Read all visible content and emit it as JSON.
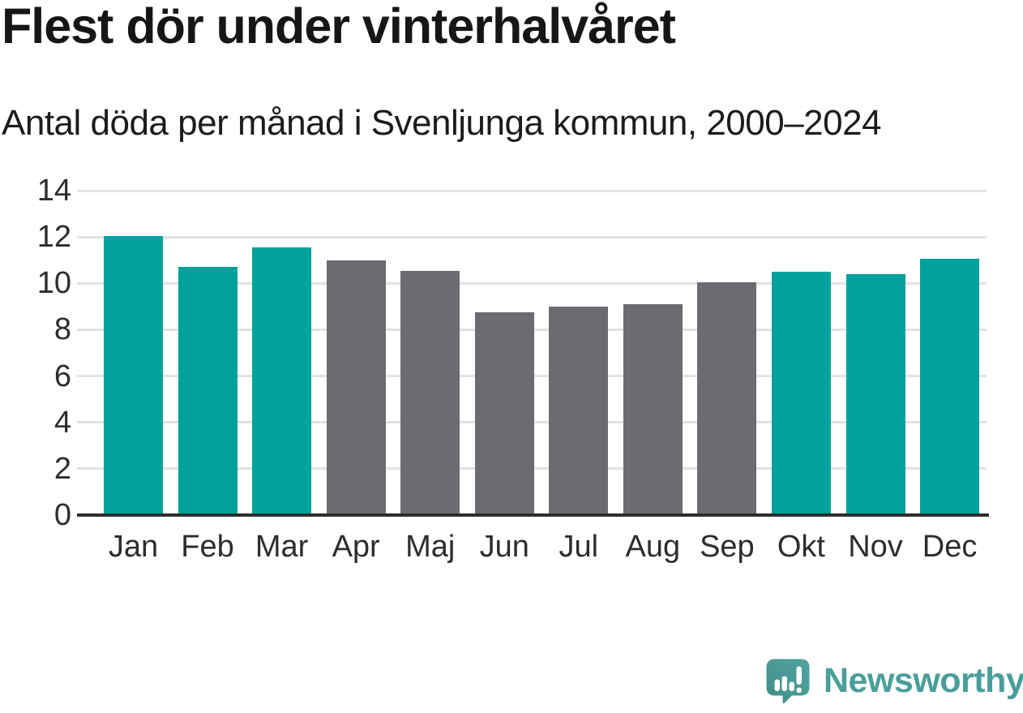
{
  "header": {
    "title": "Flest dör under vinterhalvåret",
    "subtitle": "Antal döda per månad i Svenljunga kommun, 2000–2024"
  },
  "chart_data": {
    "type": "bar",
    "title": "Flest dör under vinterhalvåret",
    "subtitle": "Antal döda per månad i Svenljunga kommun, 2000–2024",
    "categories": [
      "Jan",
      "Feb",
      "Mar",
      "Apr",
      "Maj",
      "Jun",
      "Jul",
      "Aug",
      "Sep",
      "Okt",
      "Nov",
      "Dec"
    ],
    "values": [
      12.05,
      10.7,
      11.55,
      11.0,
      10.55,
      8.75,
      9.0,
      9.1,
      10.05,
      10.5,
      10.4,
      11.05
    ],
    "bar_color_keys": [
      "winter",
      "winter",
      "winter",
      "summer",
      "summer",
      "summer",
      "summer",
      "summer",
      "summer",
      "winter",
      "winter",
      "winter"
    ],
    "palette": {
      "winter": "#00a29b",
      "summer": "#6c6b71"
    },
    "xlabel": "",
    "ylabel": "",
    "ylim": [
      0,
      14
    ],
    "yticks": [
      0,
      2,
      4,
      6,
      8,
      10,
      12,
      14
    ],
    "grid": true,
    "legend": "none",
    "gridline_color": "#e2e2e2",
    "axis_line_color": "#2e2e2e",
    "tick_label_color": "#2d2d2d"
  },
  "footer": {
    "brand": "Newsworthy",
    "brand_color": "#4a9e9b",
    "logo_icon": "newsworthy-speech-bubble-bar-chart-icon",
    "logo_gradient": [
      "#52a4a0",
      "#3f8e8a"
    ]
  },
  "colors": {
    "background": "#ffffff",
    "title_text": "#161616",
    "subtitle_text": "#1c1c1c",
    "accent_teal": "#00a29b",
    "neutral_gray": "#6c6b71"
  }
}
